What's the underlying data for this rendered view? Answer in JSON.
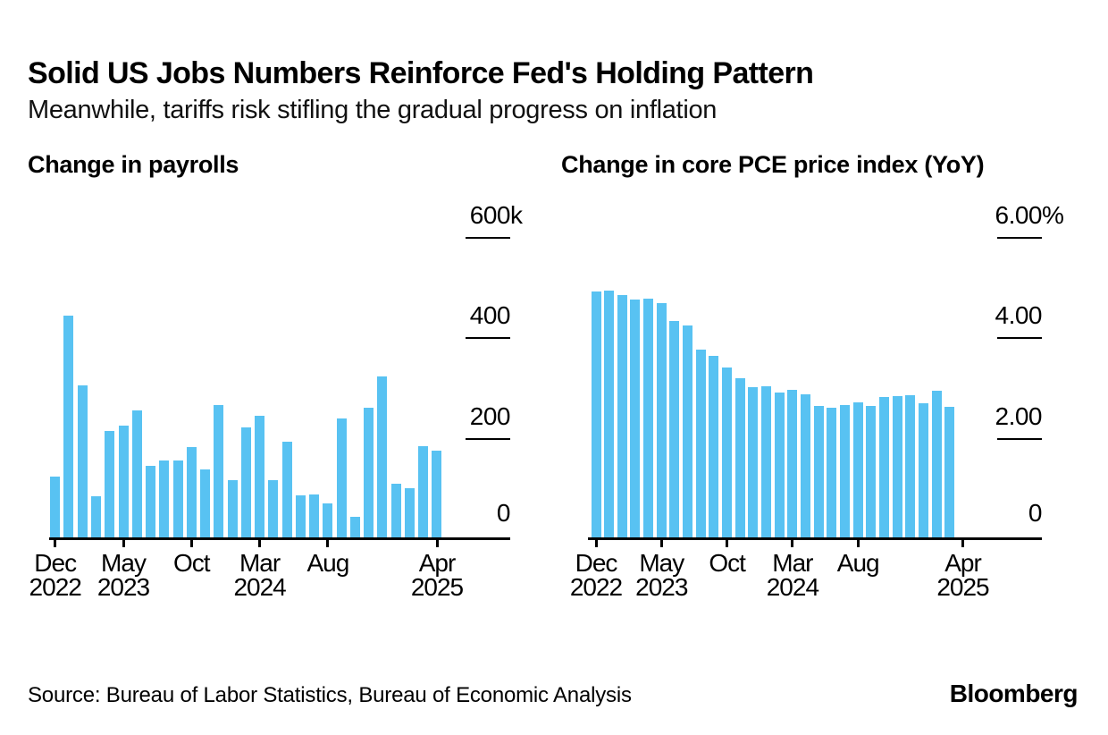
{
  "header": {
    "title": "Solid US Jobs Numbers Reinforce Fed's Holding Pattern",
    "subtitle": "Meanwhile, tariffs risk stifling the gradual progress on inflation"
  },
  "colors": {
    "bar_blue": "#58C2F2",
    "text": "#000000",
    "background": "#ffffff"
  },
  "chart_data": [
    {
      "type": "bar",
      "id": "payrolls",
      "title": "Change in payrolls",
      "ylabel": "",
      "y_unit": "thousands of jobs (k)",
      "ylim": [
        0,
        640
      ],
      "grid": false,
      "legend": "none",
      "bar_color": "#58C2F2",
      "categories": [
        "Dec 2022",
        "Jan 2023",
        "Feb 2023",
        "Mar 2023",
        "Apr 2023",
        "May 2023",
        "Jun 2023",
        "Jul 2023",
        "Aug 2023",
        "Sep 2023",
        "Oct 2023",
        "Nov 2023",
        "Dec 2023",
        "Jan 2024",
        "Feb 2024",
        "Mar 2024",
        "Apr 2024",
        "May 2024",
        "Jun 2024",
        "Jul 2024",
        "Aug 2024",
        "Sep 2024",
        "Oct 2024",
        "Nov 2024",
        "Dec 2024",
        "Jan 2025",
        "Feb 2025",
        "Mar 2025",
        "Apr 2025"
      ],
      "values": [
        125,
        444,
        306,
        85,
        216,
        226,
        257,
        146,
        156,
        156,
        184,
        139,
        267,
        117,
        222,
        246,
        118,
        194,
        87,
        89,
        71,
        241,
        44,
        261,
        323,
        111,
        102,
        185,
        177
      ],
      "yticks": [
        {
          "v": 600,
          "label": "600",
          "suffix": "k"
        },
        {
          "v": 400,
          "label": "400",
          "suffix": ""
        },
        {
          "v": 200,
          "label": "200",
          "suffix": ""
        },
        {
          "v": 0,
          "label": "0",
          "suffix": ""
        }
      ],
      "xticks": [
        {
          "i": 0,
          "l1": "Dec",
          "l2": "2022"
        },
        {
          "i": 5,
          "l1": "May",
          "l2": "2023"
        },
        {
          "i": 10,
          "l1": "Oct",
          "l2": ""
        },
        {
          "i": 15,
          "l1": "Mar",
          "l2": "2024"
        },
        {
          "i": 20,
          "l1": "Aug",
          "l2": ""
        },
        {
          "i": 28,
          "l1": "Apr",
          "l2": "2025"
        }
      ]
    },
    {
      "type": "bar",
      "id": "core-pce",
      "title": "Change in core PCE price index (YoY)",
      "ylabel": "",
      "y_unit": "percent",
      "ylim": [
        0,
        6.4
      ],
      "grid": false,
      "legend": "none",
      "bar_color": "#58C2F2",
      "note": "x-axis extends to Apr 2025 but last available bar is Mar 2025",
      "categories": [
        "Dec 2022",
        "Jan 2023",
        "Feb 2023",
        "Mar 2023",
        "Apr 2023",
        "May 2023",
        "Jun 2023",
        "Jul 2023",
        "Aug 2023",
        "Sep 2023",
        "Oct 2023",
        "Nov 2023",
        "Dec 2023",
        "Jan 2024",
        "Feb 2024",
        "Mar 2024",
        "Apr 2024",
        "May 2024",
        "Jun 2024",
        "Jul 2024",
        "Aug 2024",
        "Sep 2024",
        "Oct 2024",
        "Nov 2024",
        "Dec 2024",
        "Jan 2025",
        "Feb 2025",
        "Mar 2025"
      ],
      "values": [
        4.93,
        4.94,
        4.85,
        4.77,
        4.78,
        4.69,
        4.35,
        4.26,
        3.77,
        3.64,
        3.42,
        3.2,
        3.02,
        3.05,
        2.92,
        2.98,
        2.88,
        2.66,
        2.62,
        2.67,
        2.73,
        2.66,
        2.83,
        2.84,
        2.87,
        2.7,
        2.96,
        2.64
      ],
      "yticks": [
        {
          "v": 6,
          "label": "6.00",
          "suffix": "%"
        },
        {
          "v": 4,
          "label": "4.00",
          "suffix": ""
        },
        {
          "v": 2,
          "label": "2.00",
          "suffix": ""
        },
        {
          "v": 0,
          "label": "0",
          "suffix": ""
        }
      ],
      "xticks": [
        {
          "i": 0,
          "l1": "Dec",
          "l2": "2022"
        },
        {
          "i": 5,
          "l1": "May",
          "l2": "2023"
        },
        {
          "i": 10,
          "l1": "Oct",
          "l2": ""
        },
        {
          "i": 15,
          "l1": "Mar",
          "l2": "2024"
        },
        {
          "i": 20,
          "l1": "Aug",
          "l2": ""
        },
        {
          "i": 28,
          "l1": "Apr",
          "l2": "2025"
        }
      ]
    }
  ],
  "footer": {
    "source": "Source: Bureau of Labor Statistics, Bureau of Economic Analysis",
    "brand": "Bloomberg"
  }
}
